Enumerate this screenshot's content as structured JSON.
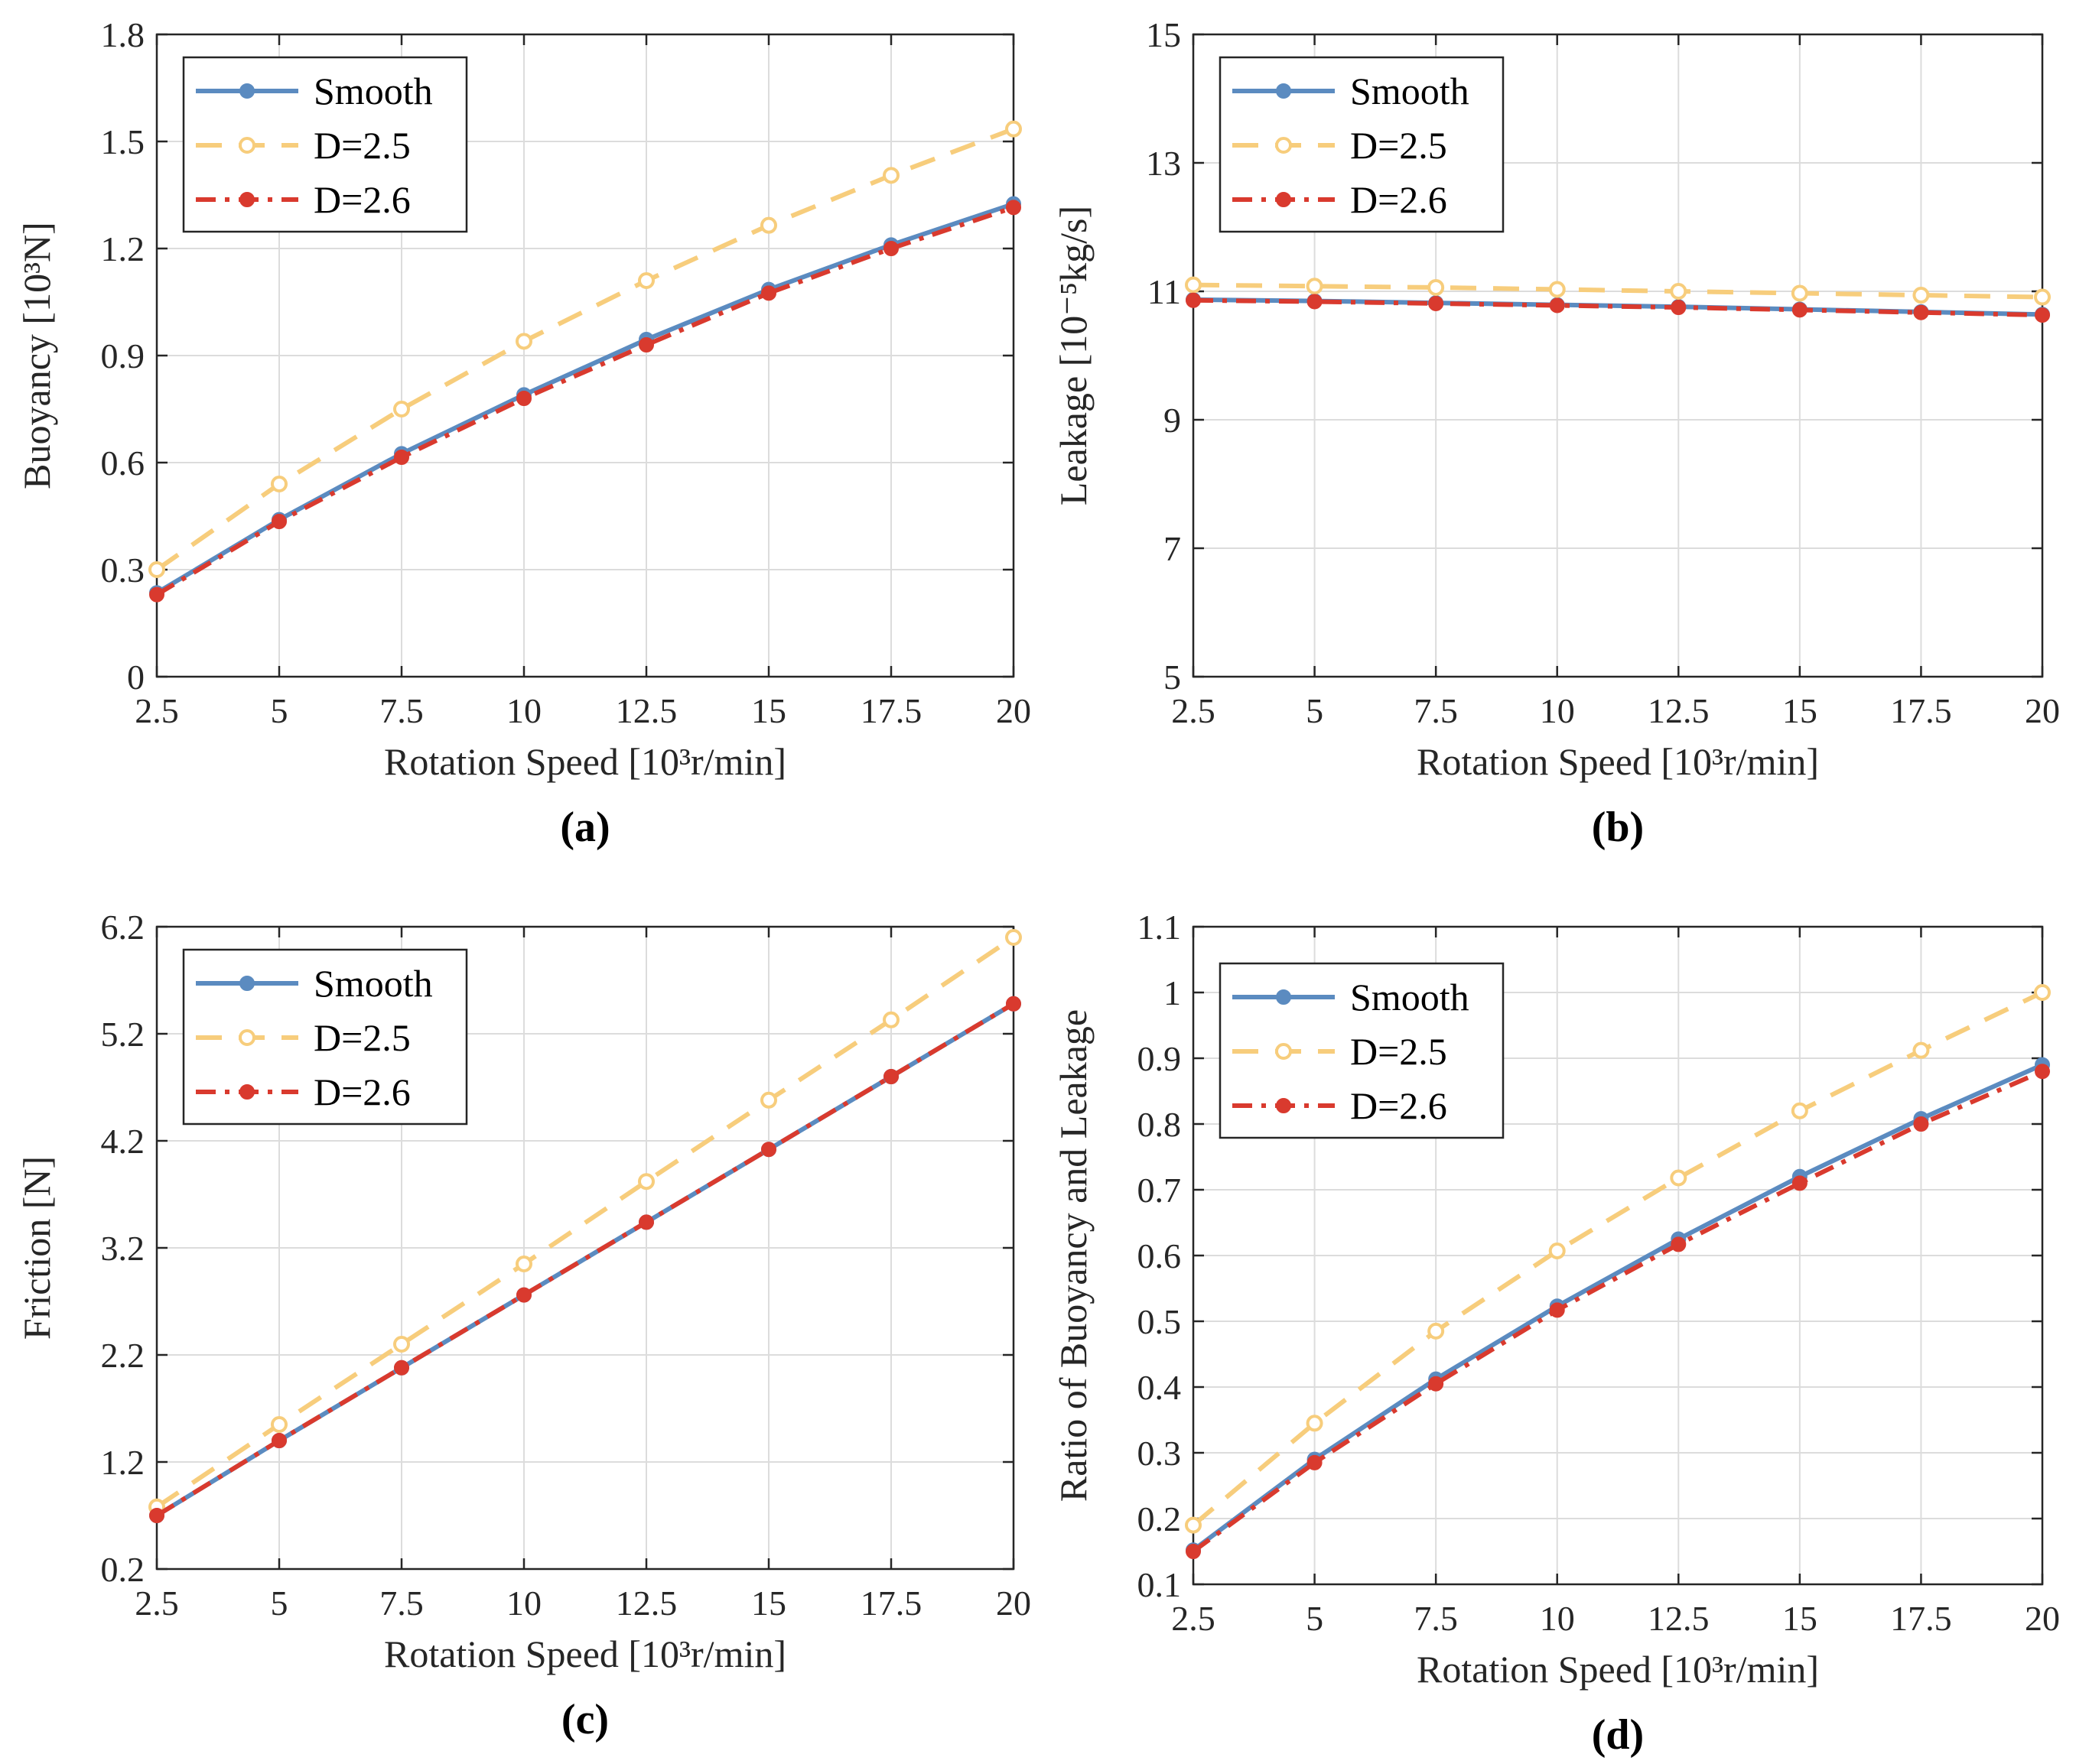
{
  "colors": {
    "smooth": "#5b8bc0",
    "d25": "#f7cd7c",
    "d26": "#d93a2e"
  },
  "legend": [
    "Smooth",
    "D=2.5",
    "D=2.6"
  ],
  "chart_data": [
    {
      "type": "line",
      "panel_label": "(a)",
      "xlabel": "Rotation Speed [10³r/min]",
      "ylabel": "Buoyancy [10³N]",
      "x": [
        2.5,
        5,
        7.5,
        10,
        12.5,
        15,
        17.5,
        20
      ],
      "xlim": [
        2.5,
        20
      ],
      "ylim": [
        0,
        1.8
      ],
      "xticks": [
        2.5,
        5,
        7.5,
        10,
        12.5,
        15,
        17.5,
        20
      ],
      "xtick_labels": [
        "2.5",
        "5",
        "7.5",
        "10",
        "12.5",
        "15",
        "17.5",
        "20"
      ],
      "yticks": [
        0,
        0.3,
        0.6,
        0.9,
        1.2,
        1.5,
        1.8
      ],
      "ytick_labels": [
        "0",
        "0.3",
        "0.6",
        "0.9",
        "1.2",
        "1.5",
        "1.8"
      ],
      "legend_position": "top-left",
      "grid": true,
      "series": [
        {
          "name": "Smooth",
          "values": [
            0.235,
            0.44,
            0.625,
            0.79,
            0.945,
            1.085,
            1.21,
            1.325
          ]
        },
        {
          "name": "D=2.5",
          "values": [
            0.3,
            0.54,
            0.75,
            0.94,
            1.11,
            1.265,
            1.405,
            1.535
          ]
        },
        {
          "name": "D=2.6",
          "values": [
            0.23,
            0.435,
            0.615,
            0.78,
            0.93,
            1.075,
            1.2,
            1.315
          ]
        }
      ]
    },
    {
      "type": "line",
      "panel_label": "(b)",
      "xlabel": "Rotation Speed [10³r/min]",
      "ylabel": "Leakage [10⁻⁵kg/s]",
      "x": [
        2.5,
        5,
        7.5,
        10,
        12.5,
        15,
        17.5,
        20
      ],
      "xlim": [
        2.5,
        20
      ],
      "ylim": [
        5,
        15
      ],
      "xticks": [
        2.5,
        5,
        7.5,
        10,
        12.5,
        15,
        17.5,
        20
      ],
      "xtick_labels": [
        "2.5",
        "5",
        "7.5",
        "10",
        "12.5",
        "15",
        "17.5",
        "20"
      ],
      "yticks": [
        5,
        7,
        9,
        11,
        13,
        15
      ],
      "ytick_labels": [
        "5",
        "7",
        "9",
        "11",
        "13",
        "15"
      ],
      "legend_position": "top-left",
      "grid": true,
      "series": [
        {
          "name": "Smooth",
          "values": [
            10.87,
            10.85,
            10.82,
            10.79,
            10.76,
            10.72,
            10.68,
            10.64
          ]
        },
        {
          "name": "D=2.5",
          "values": [
            11.1,
            11.08,
            11.06,
            11.03,
            11.0,
            10.97,
            10.94,
            10.91
          ]
        },
        {
          "name": "D=2.6",
          "values": [
            10.86,
            10.84,
            10.81,
            10.78,
            10.75,
            10.71,
            10.67,
            10.63
          ]
        }
      ]
    },
    {
      "type": "line",
      "panel_label": "(c)",
      "xlabel": "Rotation Speed [10³r/min]",
      "ylabel": "Friction [N]",
      "x": [
        2.5,
        5,
        7.5,
        10,
        12.5,
        15,
        17.5,
        20
      ],
      "xlim": [
        2.5,
        20
      ],
      "ylim": [
        0.2,
        6.2
      ],
      "xticks": [
        2.5,
        5,
        7.5,
        10,
        12.5,
        15,
        17.5,
        20
      ],
      "xtick_labels": [
        "2.5",
        "5",
        "7.5",
        "10",
        "12.5",
        "15",
        "17.5",
        "20"
      ],
      "yticks": [
        0.2,
        1.2,
        2.2,
        3.2,
        4.2,
        5.2,
        6.2
      ],
      "ytick_labels": [
        "0.2",
        "1.2",
        "2.2",
        "3.2",
        "4.2",
        "5.2",
        "6.2"
      ],
      "legend_position": "top-left",
      "grid": true,
      "series": [
        {
          "name": "Smooth",
          "values": [
            0.7,
            1.4,
            2.08,
            2.76,
            3.44,
            4.12,
            4.8,
            5.48
          ]
        },
        {
          "name": "D=2.5",
          "values": [
            0.78,
            1.55,
            2.3,
            3.05,
            3.82,
            4.58,
            5.33,
            6.1
          ]
        },
        {
          "name": "D=2.6",
          "values": [
            0.7,
            1.4,
            2.08,
            2.76,
            3.44,
            4.12,
            4.8,
            5.48
          ]
        }
      ]
    },
    {
      "type": "line",
      "panel_label": "(d)",
      "xlabel": "Rotation Speed [10³r/min]",
      "ylabel": "Ratio of Buoyancy and Leakage",
      "x": [
        2.5,
        5,
        7.5,
        10,
        12.5,
        15,
        17.5,
        20
      ],
      "xlim": [
        2.5,
        20
      ],
      "ylim": [
        0.1,
        1.1
      ],
      "xticks": [
        2.5,
        5,
        7.5,
        10,
        12.5,
        15,
        17.5,
        20
      ],
      "xtick_labels": [
        "2.5",
        "5",
        "7.5",
        "10",
        "12.5",
        "15",
        "17.5",
        "20"
      ],
      "yticks": [
        0.1,
        0.2,
        0.3,
        0.4,
        0.5,
        0.6,
        0.7,
        0.8,
        0.9,
        1.0,
        1.1
      ],
      "ytick_labels": [
        "0.1",
        "0.2",
        "0.3",
        "0.4",
        "0.5",
        "0.6",
        "0.7",
        "0.8",
        "0.9",
        "1",
        "1.1"
      ],
      "legend_position": "top-left",
      "grid": true,
      "series": [
        {
          "name": "Smooth",
          "values": [
            0.152,
            0.29,
            0.412,
            0.523,
            0.625,
            0.72,
            0.808,
            0.89
          ]
        },
        {
          "name": "D=2.5",
          "values": [
            0.19,
            0.345,
            0.485,
            0.607,
            0.718,
            0.82,
            0.912,
            1.0
          ]
        },
        {
          "name": "D=2.6",
          "values": [
            0.15,
            0.285,
            0.405,
            0.517,
            0.617,
            0.71,
            0.8,
            0.88
          ]
        }
      ]
    }
  ]
}
